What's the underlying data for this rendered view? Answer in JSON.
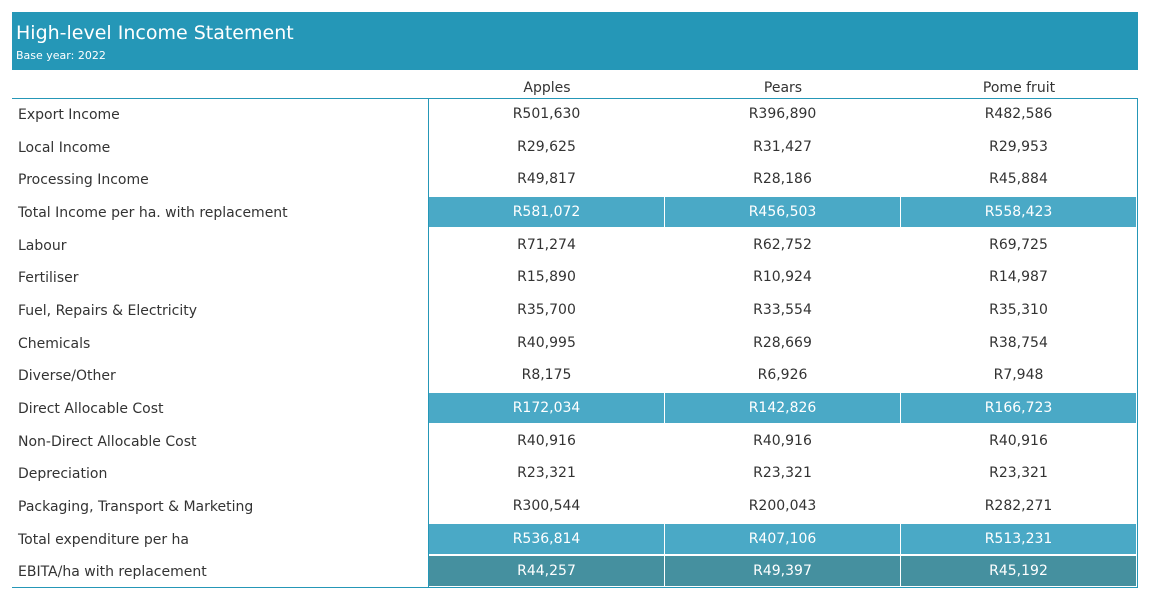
{
  "header": {
    "title": "High-level Income Statement",
    "subtitle": "Base year: 2022"
  },
  "columns": [
    "Apples",
    "Pears",
    "Pome fruit"
  ],
  "rows": [
    {
      "label": "Export Income",
      "values": [
        "R501,630",
        "R396,890",
        "R482,586"
      ],
      "style": "normal"
    },
    {
      "label": "Local Income",
      "values": [
        "R29,625",
        "R31,427",
        "R29,953"
      ],
      "style": "normal"
    },
    {
      "label": "Processing Income",
      "values": [
        "R49,817",
        "R28,186",
        "R45,884"
      ],
      "style": "normal"
    },
    {
      "label": "Total Income per ha. with replacement",
      "values": [
        "R581,072",
        "R456,503",
        "R558,423"
      ],
      "style": "highlight"
    },
    {
      "label": "Labour",
      "values": [
        "R71,274",
        "R62,752",
        "R69,725"
      ],
      "style": "normal"
    },
    {
      "label": "Fertiliser",
      "values": [
        "R15,890",
        "R10,924",
        "R14,987"
      ],
      "style": "normal"
    },
    {
      "label": "Fuel, Repairs & Electricity",
      "values": [
        "R35,700",
        "R33,554",
        "R35,310"
      ],
      "style": "normal"
    },
    {
      "label": "Chemicals",
      "values": [
        "R40,995",
        "R28,669",
        "R38,754"
      ],
      "style": "normal"
    },
    {
      "label": "Diverse/Other",
      "values": [
        "R8,175",
        "R6,926",
        "R7,948"
      ],
      "style": "normal"
    },
    {
      "label": "Direct Allocable Cost",
      "values": [
        "R172,034",
        "R142,826",
        "R166,723"
      ],
      "style": "highlight"
    },
    {
      "label": "Non-Direct Allocable Cost",
      "values": [
        "R40,916",
        "R40,916",
        "R40,916"
      ],
      "style": "normal"
    },
    {
      "label": "Depreciation",
      "values": [
        "R23,321",
        "R23,321",
        "R23,321"
      ],
      "style": "normal"
    },
    {
      "label": "Packaging, Transport & Marketing",
      "values": [
        "R300,544",
        "R200,043",
        "R282,271"
      ],
      "style": "normal"
    },
    {
      "label": "Total expenditure per ha",
      "values": [
        "R536,814",
        "R407,106",
        "R513,231"
      ],
      "style": "highlight"
    },
    {
      "label": "EBITA/ha with replacement",
      "values": [
        "R44,257",
        "R49,397",
        "R45,192"
      ],
      "style": "final"
    }
  ],
  "colors": {
    "header_bg": "#2597b7",
    "highlight_bg": "#4aa9c6",
    "final_bg": "#45909f",
    "frame": "#2597b7"
  }
}
